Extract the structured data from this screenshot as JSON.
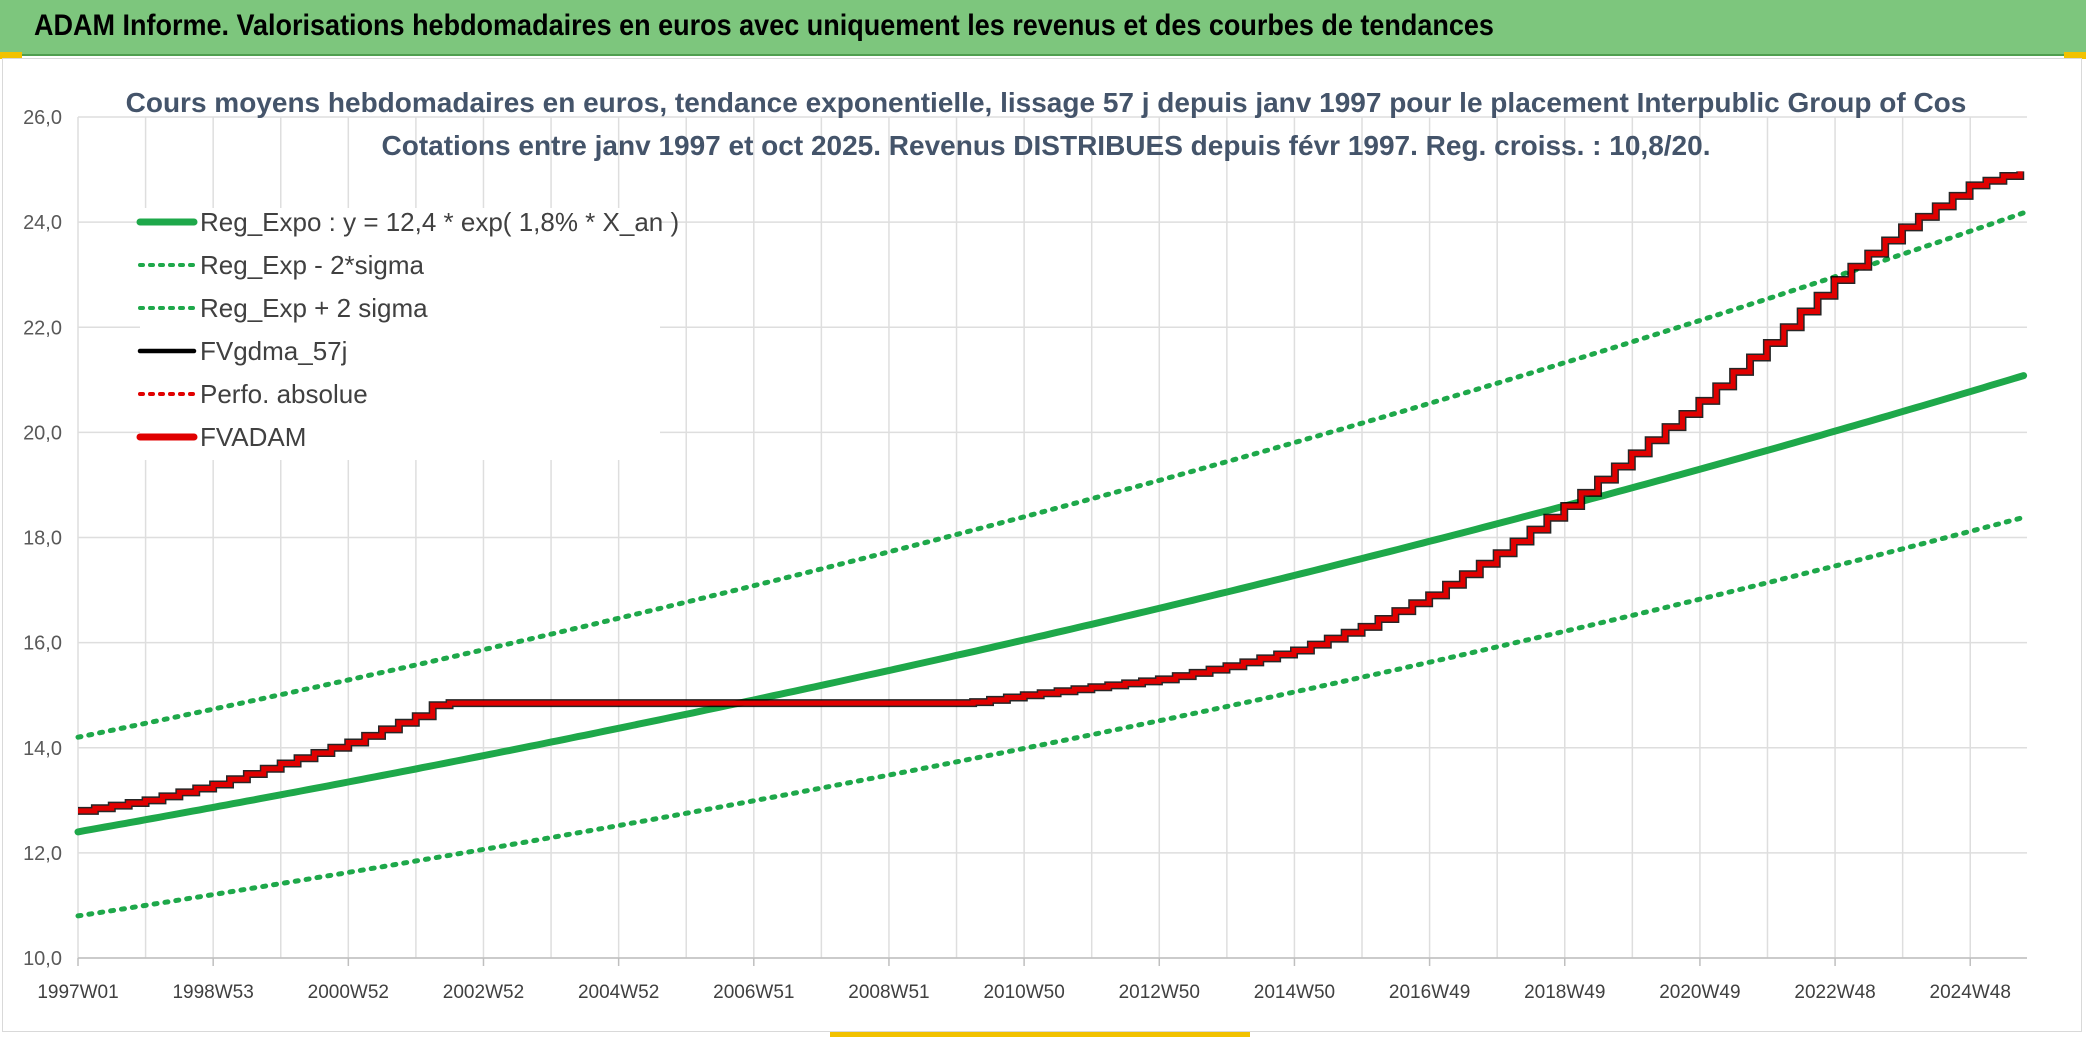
{
  "banner": {
    "title": "ADAM Informe. Valorisations hebdomadaires en euros avec uniquement les revenus et des courbes de tendances",
    "background": "#7dc67d"
  },
  "chart_data": {
    "type": "line",
    "title": "Cours moyens hebdomadaires en euros, tendance exponentielle, lissage 57 j depuis janv 1997 pour le placement Interpublic Group of Cos",
    "subtitle": "Cotations entre janv 1997 et oct 2025. Revenus DISTRIBUES depuis févr 1997. Reg. croiss. : 10,8/20.",
    "xlabel": "",
    "ylabel": "",
    "ylim": [
      10,
      26
    ],
    "yticks": [
      "10,0",
      "12,0",
      "14,0",
      "16,0",
      "18,0",
      "20,0",
      "22,0",
      "24,0",
      "26,0"
    ],
    "x_tick_labels": [
      "1997W01",
      "1998W53",
      "2000W52",
      "2002W52",
      "2004W52",
      "2006W51",
      "2008W51",
      "2010W50",
      "2012W50",
      "2014W50",
      "2016W49",
      "2018W49",
      "2020W49",
      "2022W48",
      "2024W48"
    ],
    "x_range_years": [
      1997.0,
      2025.85
    ],
    "grid": true,
    "legend_position": "top-left",
    "series": [
      {
        "name": "Reg_Expo : y = 12,4 * exp( 1,8% *  X_an )",
        "style": "solid-thick",
        "color": "#1ea84a",
        "points": [
          [
            1997.0,
            12.4
          ],
          [
            2001.0,
            13.5
          ],
          [
            2005.0,
            14.5
          ],
          [
            2009.0,
            15.6
          ],
          [
            2013.0,
            16.8
          ],
          [
            2017.0,
            18.1
          ],
          [
            2021.0,
            19.4
          ],
          [
            2025.85,
            21.1
          ]
        ]
      },
      {
        "name": "Reg_Exp - 2*sigma",
        "style": "dotted",
        "color": "#1ea84a",
        "points": [
          [
            1997.0,
            10.8
          ],
          [
            2001.0,
            11.7
          ],
          [
            2005.0,
            12.6
          ],
          [
            2009.0,
            13.5
          ],
          [
            2013.0,
            14.6
          ],
          [
            2017.0,
            15.7
          ],
          [
            2021.0,
            16.9
          ],
          [
            2025.85,
            18.4
          ]
        ]
      },
      {
        "name": "Reg_Exp + 2 sigma",
        "style": "dotted",
        "color": "#1ea84a",
        "points": [
          [
            1997.0,
            14.2
          ],
          [
            2001.0,
            15.4
          ],
          [
            2005.0,
            16.6
          ],
          [
            2009.0,
            17.8
          ],
          [
            2013.0,
            19.2
          ],
          [
            2017.0,
            20.7
          ],
          [
            2021.0,
            22.3
          ],
          [
            2025.85,
            24.2
          ]
        ]
      },
      {
        "name": "FVgdma_57j",
        "style": "solid",
        "color": "#000000",
        "points": []
      },
      {
        "name": "Perfo. absolue",
        "style": "dotted",
        "color": "#e00000",
        "points": []
      },
      {
        "name": "FVADAM",
        "style": "step-thick",
        "color": "#e00000",
        "points": [
          [
            1997.0,
            12.8
          ],
          [
            1998.0,
            13.0
          ],
          [
            1999.0,
            13.3
          ],
          [
            2000.0,
            13.7
          ],
          [
            2001.0,
            14.1
          ],
          [
            2002.0,
            14.6
          ],
          [
            2002.3,
            14.85
          ],
          [
            2010.15,
            14.85
          ],
          [
            2011.0,
            15.0
          ],
          [
            2012.0,
            15.15
          ],
          [
            2013.0,
            15.3
          ],
          [
            2014.0,
            15.55
          ],
          [
            2015.0,
            15.85
          ],
          [
            2016.0,
            16.3
          ],
          [
            2017.0,
            16.9
          ],
          [
            2018.0,
            17.7
          ],
          [
            2019.0,
            18.6
          ],
          [
            2020.0,
            19.6
          ],
          [
            2021.0,
            20.6
          ],
          [
            2022.0,
            21.7
          ],
          [
            2023.0,
            22.9
          ],
          [
            2024.0,
            23.9
          ],
          [
            2025.0,
            24.7
          ],
          [
            2025.85,
            25.0
          ]
        ]
      }
    ]
  }
}
